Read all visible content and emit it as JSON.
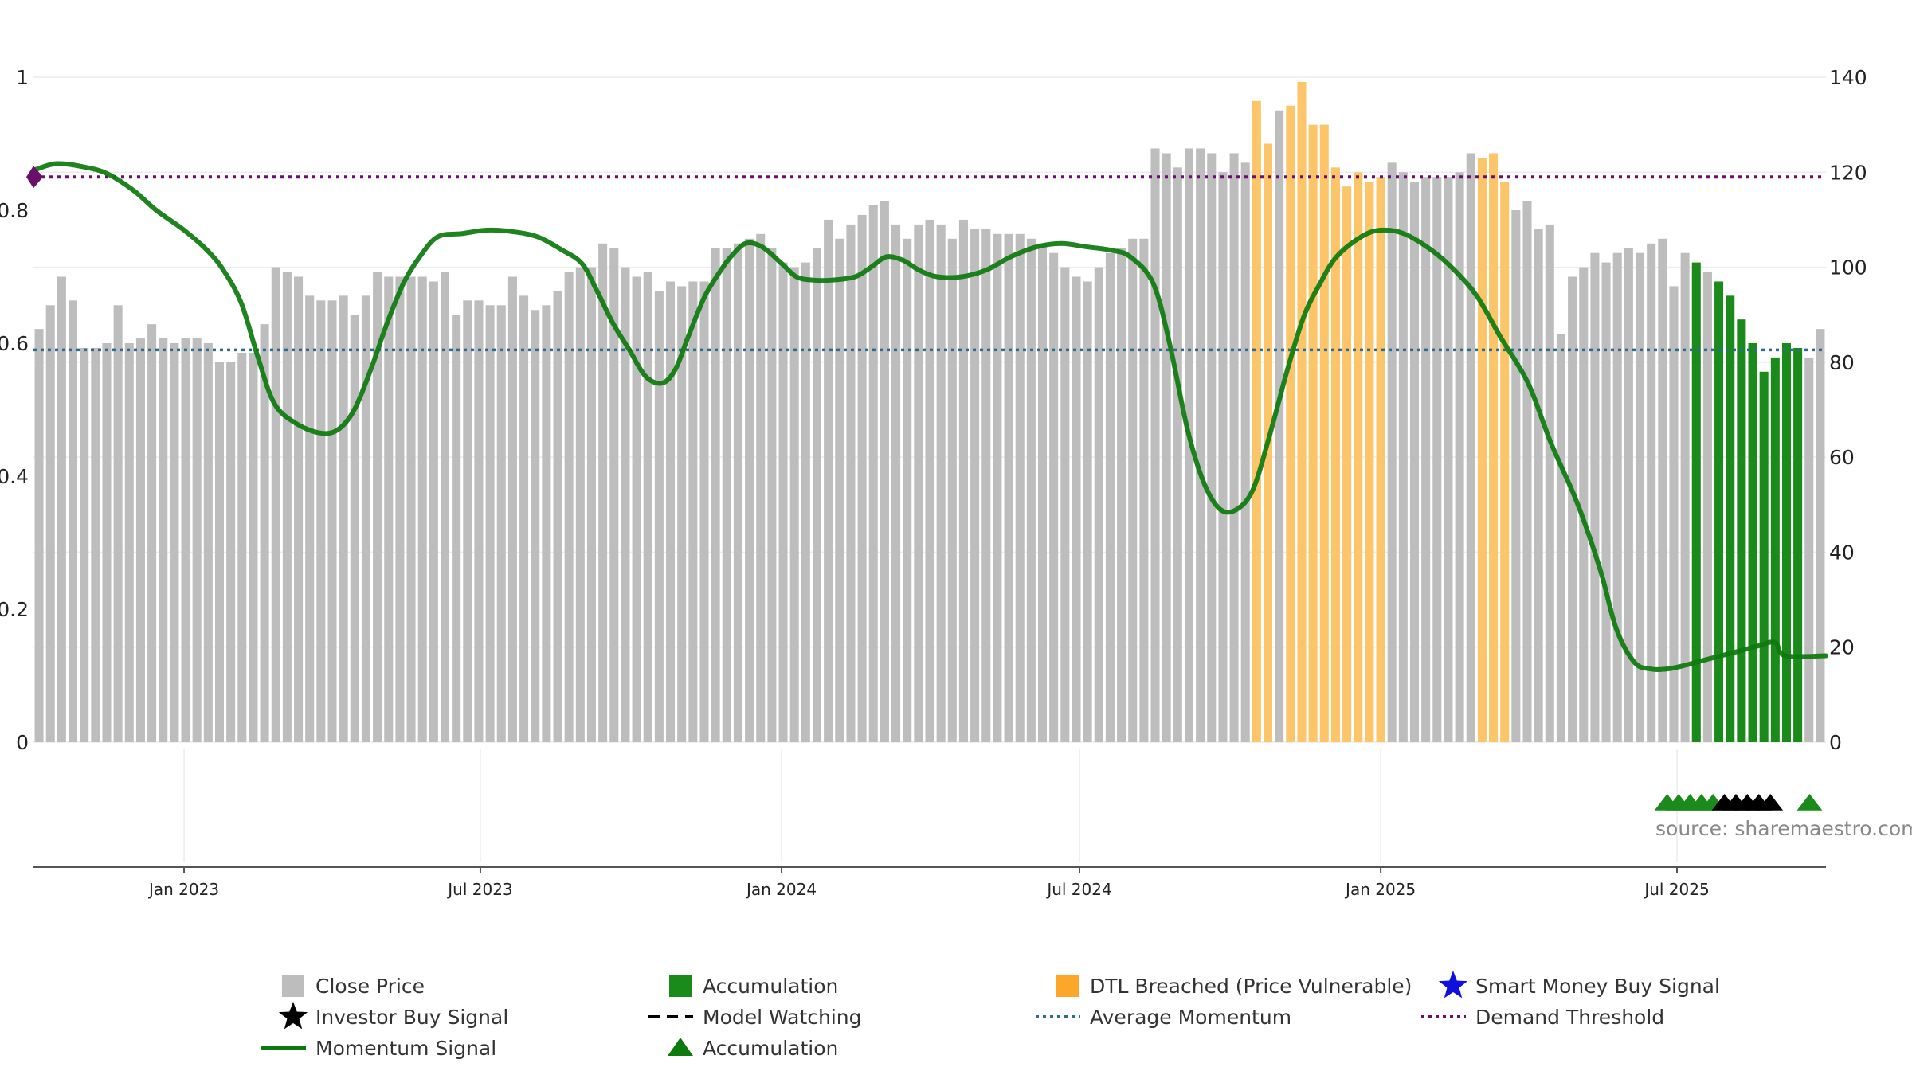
{
  "chart_data": {
    "type": "bar",
    "title": "",
    "xlabel": "",
    "ylabel_left": "",
    "ylabel_right": "",
    "left_axis": {
      "ylim": [
        0,
        1
      ],
      "ticks": [
        0,
        0.2,
        0.4,
        0.6,
        0.8,
        1
      ],
      "tick_labels": [
        "0",
        "0.2",
        "0.4",
        "0.6",
        "0.8",
        "1"
      ]
    },
    "right_axis": {
      "ylim": [
        0,
        140
      ],
      "ticks": [
        0,
        20,
        40,
        60,
        80,
        100,
        120,
        140
      ],
      "tick_labels": [
        "0",
        "20",
        "40",
        "60",
        "80",
        "100",
        "120",
        "140"
      ]
    },
    "x_axis": {
      "start": "2022-10-01",
      "end": "2025-09-30",
      "ticks": [
        "2023-01-01",
        "2023-07-01",
        "2024-01-01",
        "2024-07-01",
        "2025-01-01",
        "2025-07-01"
      ],
      "tick_labels": [
        "Jan 2023",
        "Jul 2023",
        "Jan 2024",
        "Jul 2024",
        "Jan 2025",
        "Jul 2025"
      ]
    },
    "grid": true,
    "legend_position": "bottom",
    "source": "source: sharemaestro.com",
    "colors": {
      "close_price": "#bdbdbd",
      "accumulation": "#1a8a1a",
      "dtl_breached": "#fcc56a",
      "smart_money": "#1010dd",
      "investor_buy": "#000000",
      "momentum": "#0c7a0c",
      "average_momentum": "#2e6b8f",
      "demand_threshold": "#6b0f6b",
      "marker": "#6b0f6b"
    },
    "series": [
      {
        "name": "Close Price",
        "axis": "right",
        "kind": "bar",
        "bar_colors_by_index": {
          "dtl_breached": [
            [
              108,
              109
            ],
            [
              111,
              119
            ],
            [
              128,
              130
            ]
          ],
          "accumulation": [
            [
              147,
              147
            ],
            [
              149,
              156
            ],
            [
              159,
              159
            ]
          ]
        },
        "values": [
          87,
          92,
          98,
          93,
          83,
          83,
          84,
          92,
          84,
          85,
          88,
          85,
          84,
          85,
          85,
          84,
          80,
          80,
          82,
          82,
          88,
          100,
          99,
          98,
          94,
          93,
          93,
          94,
          90,
          94,
          99,
          98,
          98,
          98,
          98,
          97,
          99,
          90,
          93,
          93,
          92,
          92,
          98,
          94,
          91,
          92,
          95,
          99,
          100,
          100,
          105,
          104,
          100,
          98,
          99,
          95,
          97,
          96,
          97,
          97,
          104,
          104,
          105,
          106,
          107,
          104,
          101,
          100,
          101,
          104,
          110,
          106,
          109,
          111,
          113,
          114,
          109,
          106,
          109,
          110,
          109,
          106,
          110,
          108,
          108,
          107,
          107,
          107,
          106,
          105,
          103,
          100,
          98,
          97,
          100,
          103,
          104,
          106,
          106,
          125,
          124,
          121,
          125,
          125,
          124,
          120,
          124,
          122,
          135,
          126,
          133,
          134,
          139,
          130,
          130,
          121,
          117,
          120,
          118,
          119,
          122,
          120,
          118,
          119,
          119,
          119,
          120,
          124,
          123,
          124,
          118,
          112,
          114,
          108,
          109,
          86,
          98,
          100,
          103,
          101,
          103,
          104,
          103,
          105,
          106,
          96,
          103,
          101,
          99,
          97,
          94,
          89,
          84,
          78,
          81,
          84,
          83,
          81,
          87
        ]
      },
      {
        "name": "Momentum Signal",
        "axis": "left",
        "kind": "line",
        "points": [
          [
            "2022-10-01",
            0.86
          ],
          [
            "2022-10-15",
            0.87
          ],
          [
            "2022-11-01",
            0.865
          ],
          [
            "2022-11-15",
            0.855
          ],
          [
            "2022-12-01",
            0.83
          ],
          [
            "2022-12-15",
            0.8
          ],
          [
            "2023-01-01",
            0.77
          ],
          [
            "2023-01-15",
            0.74
          ],
          [
            "2023-01-25",
            0.71
          ],
          [
            "2023-02-05",
            0.66
          ],
          [
            "2023-02-15",
            0.58
          ],
          [
            "2023-02-25",
            0.51
          ],
          [
            "2023-03-10",
            0.48
          ],
          [
            "2023-03-25",
            0.465
          ],
          [
            "2023-04-05",
            0.47
          ],
          [
            "2023-04-15",
            0.5
          ],
          [
            "2023-04-25",
            0.56
          ],
          [
            "2023-05-05",
            0.63
          ],
          [
            "2023-05-15",
            0.69
          ],
          [
            "2023-05-25",
            0.73
          ],
          [
            "2023-06-05",
            0.76
          ],
          [
            "2023-06-20",
            0.765
          ],
          [
            "2023-07-05",
            0.77
          ],
          [
            "2023-07-20",
            0.768
          ],
          [
            "2023-08-05",
            0.76
          ],
          [
            "2023-08-20",
            0.74
          ],
          [
            "2023-09-01",
            0.72
          ],
          [
            "2023-09-10",
            0.68
          ],
          [
            "2023-09-20",
            0.63
          ],
          [
            "2023-09-30",
            0.59
          ],
          [
            "2023-10-10",
            0.55
          ],
          [
            "2023-10-20",
            0.54
          ],
          [
            "2023-10-28",
            0.56
          ],
          [
            "2023-11-05",
            0.61
          ],
          [
            "2023-11-15",
            0.67
          ],
          [
            "2023-11-25",
            0.71
          ],
          [
            "2023-12-01",
            0.73
          ],
          [
            "2023-12-10",
            0.75
          ],
          [
            "2023-12-20",
            0.745
          ],
          [
            "2024-01-01",
            0.72
          ],
          [
            "2024-01-10",
            0.7
          ],
          [
            "2024-01-20",
            0.695
          ],
          [
            "2024-02-01",
            0.695
          ],
          [
            "2024-02-15",
            0.7
          ],
          [
            "2024-02-25",
            0.715
          ],
          [
            "2024-03-05",
            0.73
          ],
          [
            "2024-03-15",
            0.725
          ],
          [
            "2024-03-25",
            0.71
          ],
          [
            "2024-04-05",
            0.7
          ],
          [
            "2024-04-20",
            0.7
          ],
          [
            "2024-05-05",
            0.71
          ],
          [
            "2024-05-20",
            0.73
          ],
          [
            "2024-06-05",
            0.745
          ],
          [
            "2024-06-20",
            0.75
          ],
          [
            "2024-07-05",
            0.745
          ],
          [
            "2024-07-20",
            0.74
          ],
          [
            "2024-08-01",
            0.73
          ],
          [
            "2024-08-15",
            0.69
          ],
          [
            "2024-08-25",
            0.6
          ],
          [
            "2024-09-05",
            0.47
          ],
          [
            "2024-09-15",
            0.39
          ],
          [
            "2024-09-25",
            0.35
          ],
          [
            "2024-10-05",
            0.35
          ],
          [
            "2024-10-15",
            0.38
          ],
          [
            "2024-10-25",
            0.46
          ],
          [
            "2024-11-05",
            0.56
          ],
          [
            "2024-11-15",
            0.64
          ],
          [
            "2024-11-25",
            0.69
          ],
          [
            "2024-12-05",
            0.73
          ],
          [
            "2024-12-20",
            0.76
          ],
          [
            "2025-01-01",
            0.77
          ],
          [
            "2025-01-15",
            0.765
          ],
          [
            "2025-02-01",
            0.74
          ],
          [
            "2025-02-15",
            0.71
          ],
          [
            "2025-03-01",
            0.67
          ],
          [
            "2025-03-15",
            0.61
          ],
          [
            "2025-04-01",
            0.54
          ],
          [
            "2025-04-15",
            0.45
          ],
          [
            "2025-05-01",
            0.36
          ],
          [
            "2025-05-15",
            0.26
          ],
          [
            "2025-05-25",
            0.17
          ],
          [
            "2025-06-05",
            0.12
          ],
          [
            "2025-06-15",
            0.11
          ],
          [
            "2025-06-25",
            0.11
          ],
          [
            "2025-07-05",
            0.115
          ],
          [
            "2025-07-20",
            0.125
          ],
          [
            "2025-08-05",
            0.135
          ],
          [
            "2025-08-20",
            0.145
          ],
          [
            "2025-08-30",
            0.15
          ],
          [
            "2025-09-05",
            0.13
          ],
          [
            "2025-09-30",
            0.13
          ]
        ]
      },
      {
        "name": "Average Momentum",
        "axis": "left",
        "kind": "hline",
        "value": 0.59
      },
      {
        "name": "Demand Threshold",
        "axis": "left",
        "kind": "hline",
        "value": 0.85
      },
      {
        "name": "Accumulation",
        "axis": "signals",
        "kind": "marker",
        "shape": "triangle",
        "dates": [
          "2025-06-25",
          "2025-07-02",
          "2025-07-09",
          "2025-07-16",
          "2025-07-23",
          "2025-09-20"
        ]
      },
      {
        "name": "Investor Buy Signal",
        "axis": "signals",
        "kind": "marker",
        "shape": "triangle",
        "dates": [
          "2025-07-30",
          "2025-08-06",
          "2025-08-13",
          "2025-08-20",
          "2025-08-27"
        ]
      }
    ],
    "legend": [
      {
        "label": "Close Price",
        "symbol": "square",
        "color": "#bdbdbd"
      },
      {
        "label": "Accumulation",
        "symbol": "square",
        "color": "#1a8a1a"
      },
      {
        "label": "DTL Breached (Price Vulnerable)",
        "symbol": "square",
        "color": "#fca72a"
      },
      {
        "label": "Smart Money Buy Signal",
        "symbol": "star",
        "color": "#1010dd"
      },
      {
        "label": "Investor Buy Signal",
        "symbol": "star",
        "color": "#000000"
      },
      {
        "label": "Model Watching",
        "symbol": "dash",
        "color": "#000000"
      },
      {
        "label": "Average Momentum",
        "symbol": "dot",
        "color": "#2e6b8f"
      },
      {
        "label": "Demand Threshold",
        "symbol": "dot",
        "color": "#6b0f6b"
      },
      {
        "label": "Momentum Signal",
        "symbol": "line",
        "color": "#0c7a0c"
      },
      {
        "label": "Accumulation",
        "symbol": "triangle",
        "color": "#0c7a0c"
      }
    ]
  }
}
